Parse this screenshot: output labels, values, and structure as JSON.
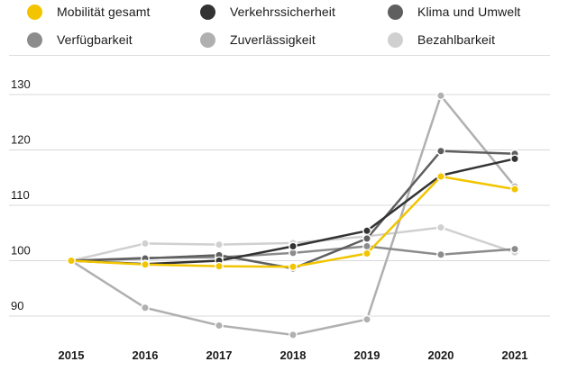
{
  "chart_data": {
    "type": "line",
    "title": "",
    "xlabel": "",
    "ylabel": "",
    "x": [
      "2015",
      "2016",
      "2017",
      "2018",
      "2019",
      "2020",
      "2021"
    ],
    "ylim": [
      85,
      132
    ],
    "yticks": [
      90,
      100,
      110,
      120,
      130
    ],
    "grid": true,
    "legend_position": "top",
    "series": [
      {
        "name": "Mobilität gesamt",
        "color": "#f2c500",
        "values": [
          100,
          99.3,
          99.0,
          98.9,
          101.3,
          115.2,
          112.9
        ]
      },
      {
        "name": "Verkehrssicherheit",
        "color": "#333333",
        "values": [
          100,
          99.4,
          100.0,
          102.6,
          105.4,
          115.4,
          118.4
        ]
      },
      {
        "name": "Klima und Umwelt",
        "color": "#5f5f5f",
        "values": [
          100,
          100.4,
          101.0,
          98.6,
          104.0,
          119.8,
          119.3
        ]
      },
      {
        "name": "Verfügbarkeit",
        "color": "#8c8c8c",
        "values": [
          100,
          100.5,
          100.6,
          101.4,
          102.6,
          101.1,
          102.1
        ]
      },
      {
        "name": "Zuverlässigkeit",
        "color": "#b0b0b0",
        "values": [
          100,
          91.5,
          88.3,
          86.6,
          89.4,
          129.8,
          113.4
        ]
      },
      {
        "name": "Bezahlbarkeit",
        "color": "#d0d0d0",
        "values": [
          100,
          103.1,
          102.9,
          103.2,
          104.4,
          106.0,
          101.5
        ]
      }
    ]
  }
}
